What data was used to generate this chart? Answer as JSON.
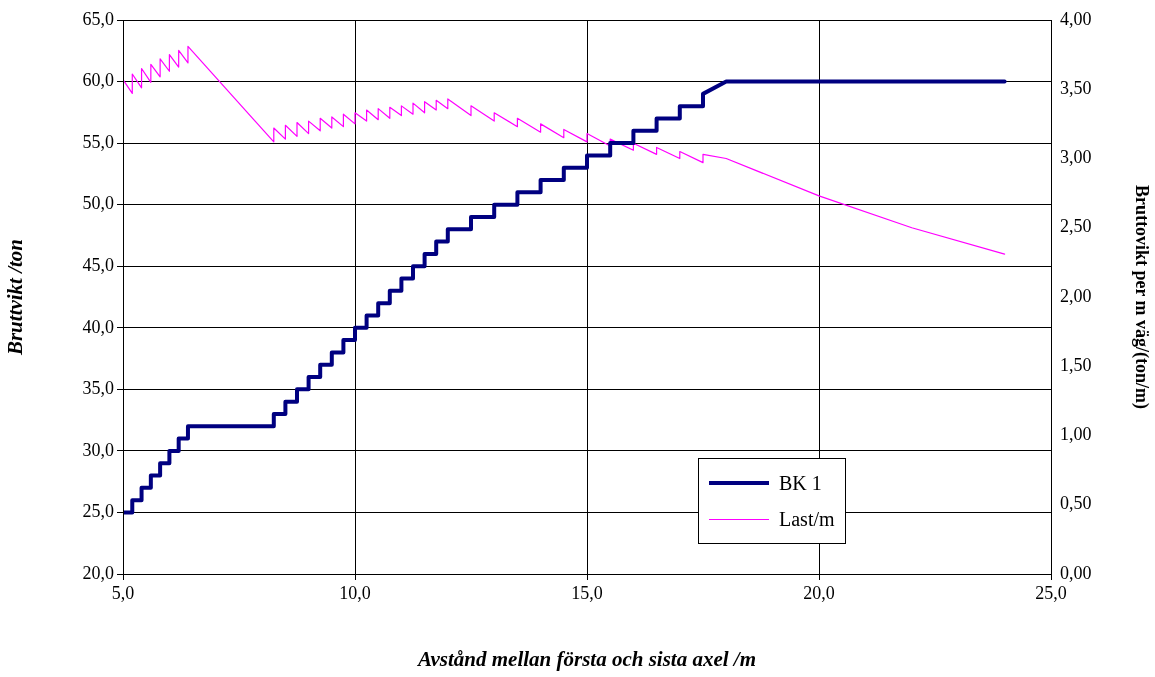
{
  "chart_data": {
    "type": "line",
    "xlabel": "Avstånd mellan första och sista axel /m",
    "ylabel": "Bruttvikt /ton",
    "y2label": "Bruttovikt per m väg/(ton/m)",
    "xlim": [
      5,
      25
    ],
    "xticks": [
      {
        "value": 5,
        "label": "5,0"
      },
      {
        "value": 10,
        "label": "10,0"
      },
      {
        "value": 15,
        "label": "15,0"
      },
      {
        "value": 20,
        "label": "20,0"
      },
      {
        "value": 25,
        "label": "25,0"
      }
    ],
    "ylim": [
      20,
      65
    ],
    "yticks": [
      {
        "value": 20,
        "label": "20,0"
      },
      {
        "value": 25,
        "label": "25,0"
      },
      {
        "value": 30,
        "label": "30,0"
      },
      {
        "value": 35,
        "label": "35,0"
      },
      {
        "value": 40,
        "label": "40,0"
      },
      {
        "value": 45,
        "label": "45,0"
      },
      {
        "value": 50,
        "label": "50,0"
      },
      {
        "value": 55,
        "label": "55,0"
      },
      {
        "value": 60,
        "label": "60,0"
      },
      {
        "value": 65,
        "label": "65,0"
      }
    ],
    "y2lim": [
      0,
      4
    ],
    "y2ticks": [
      {
        "value": 0,
        "label": "0,00"
      },
      {
        "value": 0.5,
        "label": "0,50"
      },
      {
        "value": 1,
        "label": "1,00"
      },
      {
        "value": 1.5,
        "label": "1,50"
      },
      {
        "value": 2,
        "label": "2,00"
      },
      {
        "value": 2.5,
        "label": "2,50"
      },
      {
        "value": 3,
        "label": "3,00"
      },
      {
        "value": 3.5,
        "label": "3,50"
      },
      {
        "value": 4,
        "label": "4,00"
      }
    ],
    "grid": true,
    "legend": "bottom right",
    "marker": "none",
    "line_style": "solid",
    "series": [
      {
        "name": "BK 1",
        "color": "#000080",
        "x": [
          5,
          5.2,
          5.2,
          5.4,
          5.4,
          5.6,
          5.6,
          5.8,
          5.8,
          6,
          6,
          6.2,
          6.2,
          6.4,
          6.4,
          8.25,
          8.25,
          8.5,
          8.5,
          8.75,
          8.75,
          9,
          9,
          9.25,
          9.25,
          9.5,
          9.5,
          9.75,
          9.75,
          10,
          10,
          10.25,
          10.25,
          10.5,
          10.5,
          10.75,
          10.75,
          11,
          11,
          11.25,
          11.25,
          11.5,
          11.5,
          11.75,
          11.75,
          12,
          12,
          12.5,
          12.5,
          13,
          13,
          13.5,
          13.5,
          14,
          14,
          14.5,
          14.5,
          15,
          15,
          15.5,
          15.5,
          16,
          16,
          16.5,
          16.5,
          17,
          17,
          17.5,
          17.5,
          18,
          24
        ],
        "values": [
          25,
          25,
          26,
          26,
          27,
          27,
          28,
          28,
          29,
          29,
          30,
          30,
          31,
          31,
          32,
          32,
          33,
          33,
          34,
          34,
          35,
          35,
          36,
          36,
          37,
          37,
          38,
          38,
          39,
          39,
          40,
          40,
          41,
          41,
          42,
          42,
          43,
          43,
          44,
          44,
          45,
          45,
          46,
          46,
          47,
          47,
          48,
          48,
          49,
          49,
          50,
          50,
          51,
          51,
          52,
          52,
          53,
          53,
          54,
          54,
          55,
          55,
          56,
          56,
          57,
          57,
          58,
          58,
          59,
          60,
          60
        ]
      },
      {
        "name": "Last/m",
        "color": "#ff00ff",
        "axis": "y2",
        "x": [
          5,
          5.2,
          5.2,
          5.4,
          5.4,
          5.6,
          5.6,
          5.8,
          5.8,
          6,
          6,
          6.2,
          6.2,
          6.4,
          6.4,
          8.25,
          8.25,
          8.5,
          8.5,
          8.75,
          8.75,
          9,
          9,
          9.25,
          9.25,
          9.5,
          9.5,
          9.75,
          9.75,
          10,
          10,
          10.25,
          10.25,
          10.5,
          10.5,
          10.75,
          10.75,
          11,
          11,
          11.25,
          11.25,
          11.5,
          11.5,
          11.75,
          11.75,
          12,
          12,
          12.5,
          12.5,
          13,
          13,
          13.5,
          13.5,
          14,
          14,
          14.5,
          14.5,
          15,
          15,
          15.5,
          15.5,
          16,
          16,
          16.5,
          16.5,
          17,
          17,
          17.5,
          17.5,
          18,
          20,
          22,
          24
        ],
        "values": [
          3.57,
          3.47,
          3.61,
          3.51,
          3.65,
          3.55,
          3.68,
          3.59,
          3.72,
          3.63,
          3.75,
          3.66,
          3.78,
          3.69,
          3.81,
          3.12,
          3.22,
          3.14,
          3.24,
          3.16,
          3.26,
          3.18,
          3.27,
          3.2,
          3.29,
          3.22,
          3.3,
          3.23,
          3.32,
          3.25,
          3.33,
          3.27,
          3.35,
          3.28,
          3.36,
          3.29,
          3.37,
          3.31,
          3.38,
          3.32,
          3.4,
          3.33,
          3.41,
          3.35,
          3.42,
          3.36,
          3.43,
          3.31,
          3.38,
          3.27,
          3.33,
          3.23,
          3.29,
          3.19,
          3.25,
          3.15,
          3.21,
          3.12,
          3.18,
          3.09,
          3.14,
          3.06,
          3.11,
          3.03,
          3.08,
          3,
          3.05,
          2.97,
          3.03,
          3,
          2.73,
          2.5,
          2.31
        ]
      }
    ]
  }
}
